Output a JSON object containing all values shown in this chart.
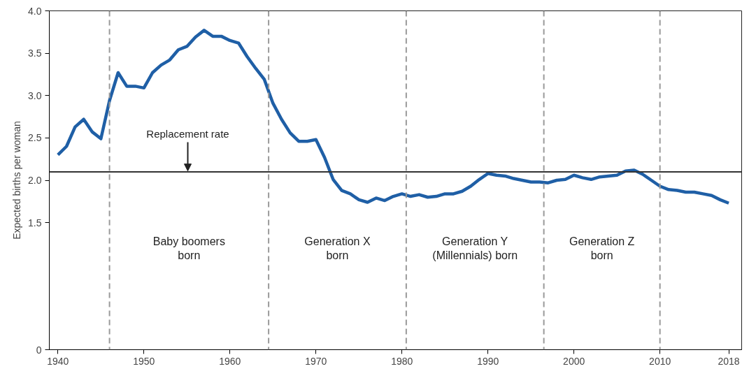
{
  "chart_data": {
    "type": "line",
    "ylabel": "Expected births per woman",
    "x": [
      1940,
      1941,
      1942,
      1943,
      1944,
      1945,
      1946,
      1947,
      1948,
      1949,
      1950,
      1951,
      1952,
      1953,
      1954,
      1955,
      1956,
      1957,
      1958,
      1959,
      1960,
      1961,
      1962,
      1963,
      1964,
      1965,
      1966,
      1967,
      1968,
      1969,
      1970,
      1971,
      1972,
      1973,
      1974,
      1975,
      1976,
      1977,
      1978,
      1979,
      1980,
      1981,
      1982,
      1983,
      1984,
      1985,
      1986,
      1987,
      1988,
      1989,
      1990,
      1991,
      1992,
      1993,
      1994,
      1995,
      1996,
      1997,
      1998,
      1999,
      2000,
      2001,
      2002,
      2003,
      2004,
      2005,
      2006,
      2007,
      2008,
      2009,
      2010,
      2011,
      2012,
      2013,
      2014,
      2015,
      2016,
      2017,
      2018
    ],
    "series": [
      {
        "color": "#1f5fa6",
        "values": [
          2.3,
          2.4,
          2.63,
          2.72,
          2.57,
          2.49,
          2.94,
          3.27,
          3.11,
          3.11,
          3.09,
          3.27,
          3.36,
          3.42,
          3.54,
          3.58,
          3.69,
          3.77,
          3.7,
          3.7,
          3.65,
          3.62,
          3.46,
          3.32,
          3.19,
          2.91,
          2.72,
          2.56,
          2.46,
          2.46,
          2.48,
          2.27,
          2.01,
          1.88,
          1.84,
          1.77,
          1.74,
          1.79,
          1.76,
          1.81,
          1.84,
          1.81,
          1.83,
          1.8,
          1.81,
          1.84,
          1.84,
          1.87,
          1.93,
          2.01,
          2.08,
          2.06,
          2.05,
          2.02,
          2.0,
          1.98,
          1.98,
          1.97,
          2.0,
          2.01,
          2.06,
          2.03,
          2.01,
          2.04,
          2.05,
          2.06,
          2.11,
          2.12,
          2.07,
          2.0,
          1.93,
          1.89,
          1.88,
          1.86,
          1.86,
          1.84,
          1.82,
          1.77,
          1.73
        ]
      }
    ],
    "xlim": [
      1939,
      2019.5
    ],
    "xticks": [
      1940,
      1950,
      1960,
      1970,
      1980,
      1990,
      2000,
      2010,
      2018
    ],
    "ylim": [
      0,
      4.0
    ],
    "yticks": [
      {
        "value": 0,
        "label": "0"
      },
      {
        "value": 1.5,
        "label": "1.5"
      },
      {
        "value": 2.0,
        "label": "2.0"
      },
      {
        "value": 2.5,
        "label": "2.5"
      },
      {
        "value": 3.0,
        "label": "3.0"
      },
      {
        "value": 3.5,
        "label": "3.5"
      },
      {
        "value": 4.0,
        "label": "4.0"
      }
    ],
    "ref_lines": [
      {
        "axis": "y",
        "value": 2.1,
        "label": "Replacement rate",
        "color": "#333333",
        "line_style": "solid"
      },
      {
        "axis": "x",
        "value": 1946,
        "color": "#999999",
        "line_style": "dashed"
      },
      {
        "axis": "x",
        "value": 1964.5,
        "color": "#999999",
        "line_style": "dashed"
      },
      {
        "axis": "x",
        "value": 1980.5,
        "color": "#999999",
        "line_style": "dashed"
      },
      {
        "axis": "x",
        "value": 1996.5,
        "color": "#999999",
        "line_style": "dashed"
      },
      {
        "axis": "x",
        "value": 2010,
        "color": "#999999",
        "line_style": "dashed"
      }
    ],
    "annotations": [
      "Baby boomers\nborn",
      "Generation X\nborn",
      "Generation Y\n(Millennials) born",
      "Generation Z\nborn"
    ],
    "grid": false,
    "marker": "none",
    "line_style": "solid"
  }
}
